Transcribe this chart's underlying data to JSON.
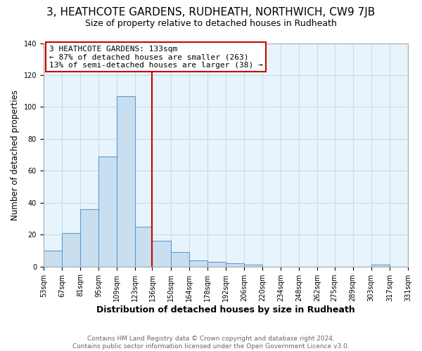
{
  "title": "3, HEATHCOTE GARDENS, RUDHEATH, NORTHWICH, CW9 7JB",
  "subtitle": "Size of property relative to detached houses in Rudheath",
  "xlabel": "Distribution of detached houses by size in Rudheath",
  "ylabel": "Number of detached properties",
  "footer_line1": "Contains HM Land Registry data © Crown copyright and database right 2024.",
  "footer_line2": "Contains public sector information licensed under the Open Government Licence v3.0.",
  "bin_edges": [
    53,
    67,
    81,
    95,
    109,
    123,
    136,
    150,
    164,
    178,
    192,
    206,
    220,
    234,
    248,
    262,
    275,
    289,
    303,
    317,
    331
  ],
  "bin_labels": [
    "53sqm",
    "67sqm",
    "81sqm",
    "95sqm",
    "109sqm",
    "123sqm",
    "136sqm",
    "150sqm",
    "164sqm",
    "178sqm",
    "192sqm",
    "206sqm",
    "220sqm",
    "234sqm",
    "248sqm",
    "262sqm",
    "275sqm",
    "289sqm",
    "303sqm",
    "317sqm",
    "331sqm"
  ],
  "counts": [
    10,
    21,
    36,
    69,
    107,
    25,
    16,
    9,
    4,
    3,
    2,
    1,
    0,
    0,
    0,
    0,
    0,
    0,
    1,
    0
  ],
  "bar_facecolor": "#c9dff0",
  "bar_edgecolor": "#5b9bd5",
  "vline_x": 136,
  "vline_color": "#cc0000",
  "annotation_title": "3 HEATHCOTE GARDENS: 133sqm",
  "annotation_line2": "← 87% of detached houses are smaller (263)",
  "annotation_line3": "13% of semi-detached houses are larger (38) →",
  "annotation_box_edgecolor": "#cc0000",
  "annotation_box_facecolor": "#ffffff",
  "grid_color": "#c8dcea",
  "plot_bg_color": "#e8f4fb",
  "figure_bg_color": "#ffffff",
  "ylim": [
    0,
    140
  ],
  "yticks": [
    0,
    20,
    40,
    60,
    80,
    100,
    120,
    140
  ],
  "title_fontsize": 11,
  "subtitle_fontsize": 9,
  "ylabel_fontsize": 8.5,
  "xlabel_fontsize": 9,
  "tick_fontsize": 7,
  "annotation_fontsize": 8,
  "footer_fontsize": 6.5,
  "footer_color": "#666666"
}
